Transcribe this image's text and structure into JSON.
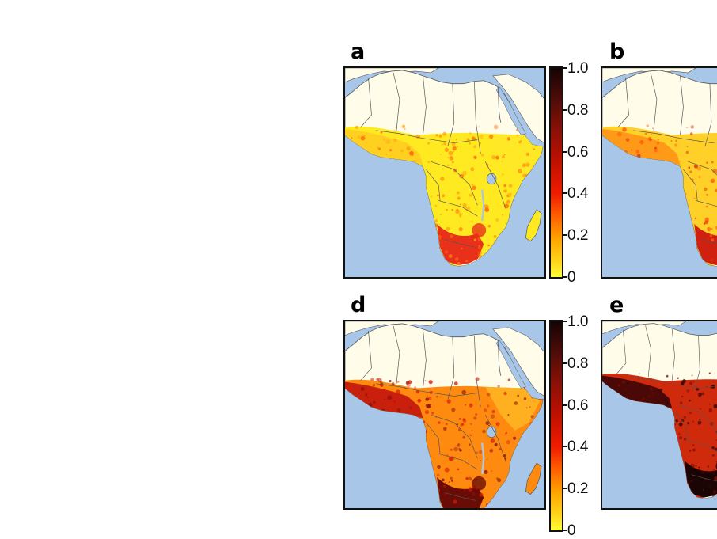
{
  "panels": [
    {
      "letter": "a",
      "pattern": "low"
    },
    {
      "letter": "b",
      "pattern": "low-mid"
    },
    {
      "letter": "d",
      "pattern": "high"
    },
    {
      "letter": "e",
      "pattern": "very-high"
    }
  ],
  "colorbar": {
    "ticks": [
      "1.0",
      "0.8",
      "0.6",
      "0.4",
      "0.2",
      "0"
    ],
    "min": 0,
    "max": 1.0
  },
  "colors": {
    "ocean": "#a8c6e8",
    "land_no_data": "#fffdea",
    "low": "#ffee22",
    "high": "#140404"
  }
}
